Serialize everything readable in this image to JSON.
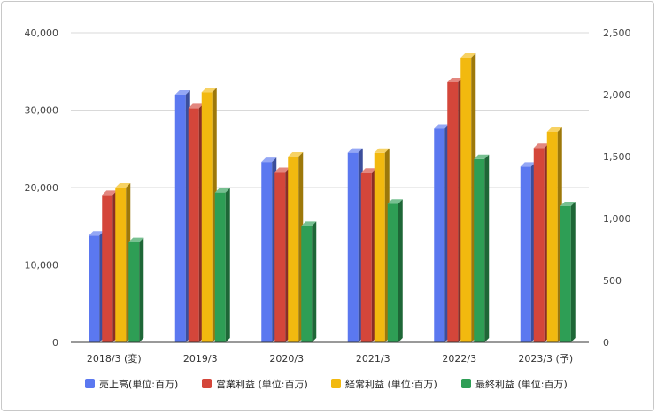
{
  "chart_data": {
    "type": "bar",
    "title": "",
    "categories": [
      "2018/3 (変)",
      "2019/3",
      "2020/3",
      "2021/3",
      "2022/3",
      "2023/3 (予)"
    ],
    "series": [
      {
        "name": "売上高(単位:百万)",
        "axis": "left",
        "color": "#5b78f0",
        "values": [
          13800,
          32000,
          23300,
          24500,
          27600,
          22700
        ]
      },
      {
        "name": "営業利益 (単位:百万)",
        "axis": "right",
        "color": "#d4463a",
        "values": [
          1190,
          1890,
          1375,
          1370,
          2100,
          1570
        ]
      },
      {
        "name": "経常利益 (単位:百万)",
        "axis": "right",
        "color": "#f2b90f",
        "values": [
          1250,
          2020,
          1500,
          1530,
          2300,
          1700
        ]
      },
      {
        "name": "最終利益 (単位:百万)",
        "axis": "right",
        "color": "#2e9e55",
        "values": [
          810,
          1210,
          940,
          1120,
          1480,
          1100
        ]
      }
    ],
    "y_left": {
      "min": 0,
      "max": 40000,
      "ticks": [
        "0",
        "10,000",
        "20,000",
        "30,000",
        "40,000"
      ]
    },
    "y_right": {
      "min": 0,
      "max": 2500,
      "ticks": [
        "0",
        "500",
        "1,000",
        "1,500",
        "2,000",
        "2,500"
      ]
    },
    "grid": true,
    "legend_position": "bottom"
  }
}
